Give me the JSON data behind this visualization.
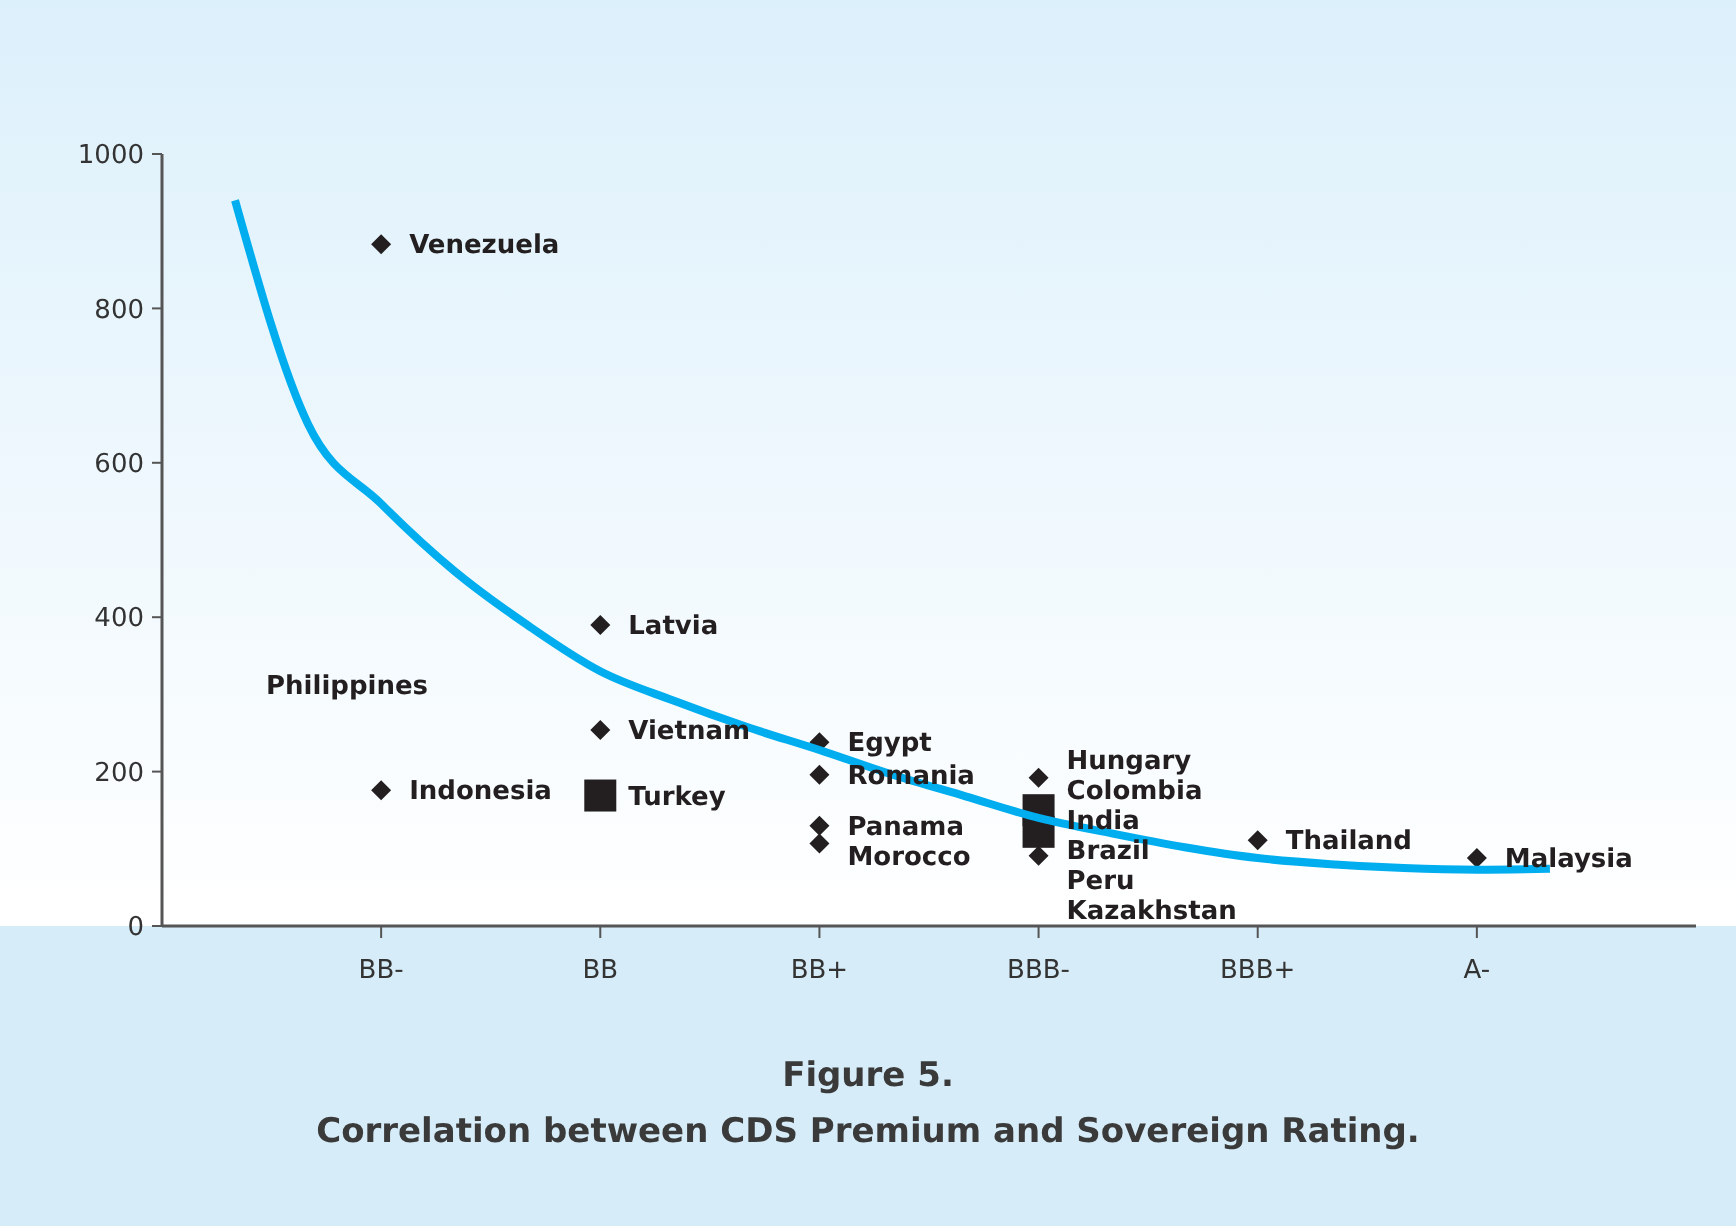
{
  "chart_data": {
    "type": "scatter",
    "title": "Figure 5.",
    "subtitle": "Correlation between CDS Premium and Sovereign Rating.",
    "categories": [
      null,
      null,
      "BB-",
      null,
      null,
      "BB",
      null,
      null,
      "BB+",
      null,
      null,
      "BBB-",
      null,
      null,
      "BBB+",
      null,
      null,
      "A-",
      null
    ],
    "ylim": [
      0,
      1000
    ],
    "yticks": [
      0,
      200,
      400,
      600,
      800,
      1000
    ],
    "grid": false,
    "legend": false,
    "series": [
      {
        "type": "scatter",
        "marker": "diamond",
        "color": "#231f20",
        "x": [
          "BB-",
          "BB-",
          "BB",
          "BB",
          "BB+",
          "BB+",
          "BB+",
          "BB+",
          "BBB-",
          "BBB-",
          "BBB+",
          "A-"
        ],
        "values": [
          883,
          176,
          390,
          254,
          238,
          196,
          130,
          107,
          192,
          91,
          111,
          88
        ]
      },
      {
        "marker": "square",
        "color": "#231f20",
        "x": [
          "BB",
          "BBB-",
          "BBB-"
        ],
        "values": [
          169,
          150,
          122
        ]
      },
      {
        "type": "line",
        "marker": "none",
        "color": "#00aeef",
        "values": [
          940,
          650,
          547,
          460,
          390,
          330,
          292,
          258,
          228,
          196,
          168,
          140,
          120,
          102,
          88,
          80,
          75,
          73,
          74
        ]
      }
    ],
    "annotations": [
      {
        "text": "Venezuela",
        "x": "BB-",
        "y": 883
      },
      "Philippines",
      {
        "text": "Indonesia",
        "x": "BB-",
        "y": 176
      },
      {
        "text": "Latvia",
        "x": "BB",
        "y": 390
      },
      {
        "text": "Vietnam",
        "x": "BB",
        "y": 254
      },
      {
        "text": "Turkey",
        "x": "BB",
        "y": 169
      },
      {
        "text": "Egypt",
        "x": "BB+",
        "y": 238
      },
      {
        "text": "Romania",
        "x": "BB+",
        "y": 196
      },
      {
        "text": "Panama",
        "x": "BB+",
        "y": 130
      },
      {
        "text": "Morocco",
        "x": "BB+",
        "y": 107
      },
      {
        "text": "Hungary",
        "x": "BBB-",
        "y": 192
      },
      {
        "text": "Colombia",
        "x": "BBB-",
        "y": 192
      },
      {
        "text": "India",
        "x": "BBB-",
        "y": 150
      },
      {
        "text": "Brazil",
        "x": "BBB-",
        "y": 122
      },
      {
        "text": "Peru",
        "x": "BBB-",
        "y": 91
      },
      {
        "text": "Kazakhstan",
        "x": "BBB-",
        "y": 91
      },
      {
        "text": "Thailand",
        "x": "BBB+",
        "y": 111
      },
      {
        "text": "Malaysia",
        "x": "A-",
        "y": 88
      }
    ]
  }
}
